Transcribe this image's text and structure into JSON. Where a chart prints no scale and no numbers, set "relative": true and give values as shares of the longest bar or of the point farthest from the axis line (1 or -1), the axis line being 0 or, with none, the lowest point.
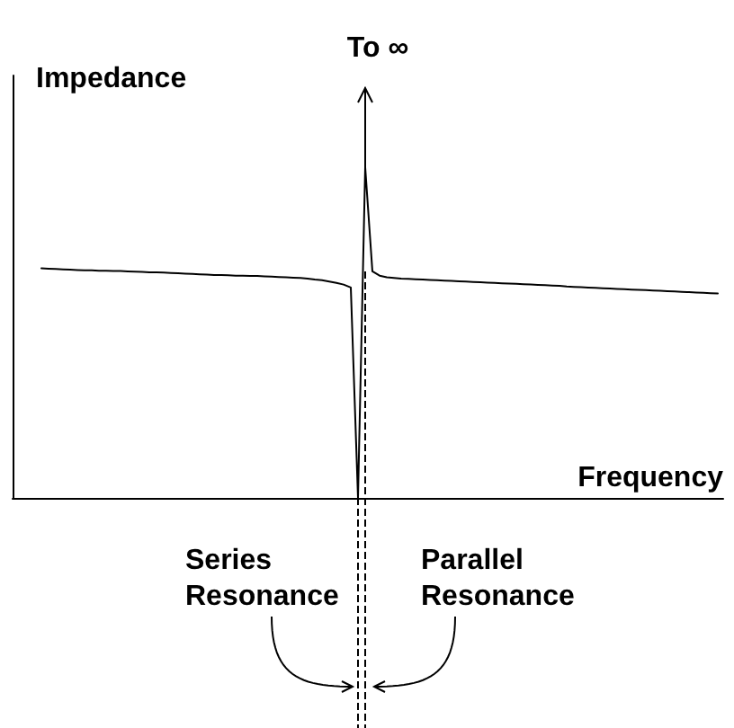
{
  "chart_data": {
    "type": "line",
    "xlabel": "Frequency",
    "ylabel": "Impedance",
    "relative": true,
    "tick_labels": false,
    "marker": "none",
    "line_style": "solid",
    "color": "#000000",
    "annotations": [
      "To ∞",
      "Series Resonance",
      "Parallel Resonance"
    ],
    "categories": [
      null,
      null,
      null,
      null,
      null,
      null,
      null,
      null,
      null,
      null,
      null,
      null,
      null,
      null,
      null,
      null,
      null,
      null,
      null,
      null,
      null,
      null,
      null,
      null,
      null,
      null,
      null,
      null,
      null,
      null,
      null,
      null,
      null,
      null,
      null,
      null,
      null,
      null,
      null,
      null,
      null,
      null,
      null,
      null,
      null,
      null,
      null,
      null,
      null,
      null,
      null,
      null,
      null,
      null,
      null,
      null,
      null,
      null,
      null,
      null,
      null,
      null,
      null,
      null,
      null,
      null,
      null,
      null,
      null,
      null,
      null,
      null,
      null,
      null,
      null,
      null,
      null,
      null,
      null,
      null,
      null,
      null,
      null,
      null,
      null,
      null,
      null,
      null,
      null,
      null,
      null,
      null,
      null,
      null,
      null
    ],
    "values": [
      0.694,
      0.693,
      0.692,
      0.691,
      0.69,
      0.689,
      0.688,
      0.688,
      0.687,
      0.687,
      0.686,
      0.686,
      0.685,
      0.684,
      0.683,
      0.682,
      0.682,
      0.681,
      0.68,
      0.679,
      0.678,
      0.677,
      0.676,
      0.675,
      0.674,
      0.674,
      0.673,
      0.672,
      0.672,
      0.671,
      0.671,
      0.67,
      0.669,
      0.668,
      0.667,
      0.666,
      0.665,
      0.663,
      0.66,
      0.658,
      0.654,
      0.65,
      0.645,
      0.636,
      0,
      1,
      0.685,
      0.672,
      0.667,
      0.665,
      0.663,
      0.662,
      0.661,
      0.66,
      0.659,
      0.658,
      0.657,
      0.656,
      0.655,
      0.654,
      0.653,
      0.652,
      0.651,
      0.65,
      0.649,
      0.648,
      0.647,
      0.646,
      0.645,
      0.644,
      0.643,
      0.642,
      0.641,
      0.639,
      0.638,
      0.637,
      0.636,
      0.635,
      0.634,
      0.633,
      0.632,
      0.631,
      0.63,
      0.629,
      0.628,
      0.627,
      0.626,
      0.625,
      0.624,
      0.623,
      0.622,
      0.621,
      0.62,
      0.619,
      0.618
    ]
  }
}
